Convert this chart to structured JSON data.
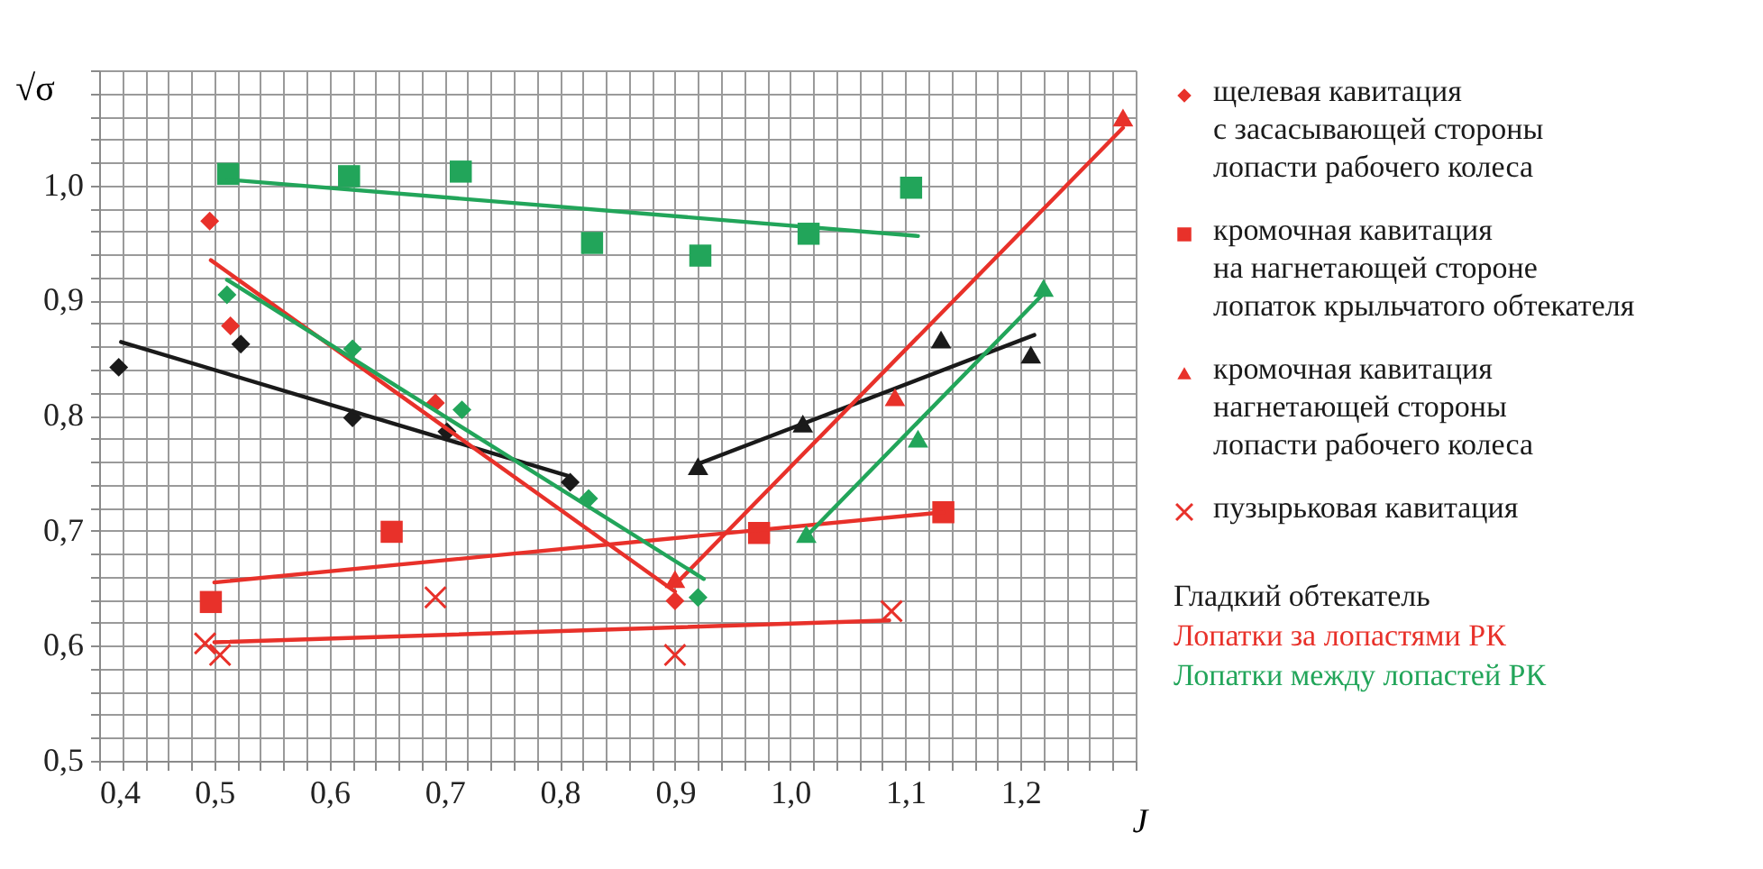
{
  "chart_data": {
    "type": "scatter",
    "xlabel": "J",
    "ylabel": "√σ",
    "xlim": [
      0.4,
      1.3
    ],
    "ylim": [
      0.5,
      1.1
    ],
    "xticks": [
      {
        "value": 0.4,
        "label": "0,4"
      },
      {
        "value": 0.42,
        "label": null
      },
      {
        "value": 0.44,
        "label": null
      },
      {
        "value": 0.46,
        "label": null
      },
      {
        "value": 0.48,
        "label": null
      },
      {
        "value": 0.5,
        "label": "0,5"
      },
      {
        "value": 0.52,
        "label": null
      },
      {
        "value": 0.54,
        "label": null
      },
      {
        "value": 0.56,
        "label": null
      },
      {
        "value": 0.58,
        "label": null
      },
      {
        "value": 0.6,
        "label": "0,6"
      },
      {
        "value": 0.62,
        "label": null
      },
      {
        "value": 0.64,
        "label": null
      },
      {
        "value": 0.66,
        "label": null
      },
      {
        "value": 0.68,
        "label": null
      },
      {
        "value": 0.7,
        "label": "0,7"
      },
      {
        "value": 0.72,
        "label": null
      },
      {
        "value": 0.74,
        "label": null
      },
      {
        "value": 0.76,
        "label": null
      },
      {
        "value": 0.78,
        "label": null
      },
      {
        "value": 0.8,
        "label": "0,8"
      },
      {
        "value": 0.82,
        "label": null
      },
      {
        "value": 0.84,
        "label": null
      },
      {
        "value": 0.86,
        "label": null
      },
      {
        "value": 0.88,
        "label": null
      },
      {
        "value": 0.9,
        "label": "0,9"
      },
      {
        "value": 0.92,
        "label": null
      },
      {
        "value": 0.94,
        "label": null
      },
      {
        "value": 0.96,
        "label": null
      },
      {
        "value": 0.98,
        "label": null
      },
      {
        "value": 1.0,
        "label": "1,0"
      },
      {
        "value": 1.02,
        "label": null
      },
      {
        "value": 1.04,
        "label": null
      },
      {
        "value": 1.06,
        "label": null
      },
      {
        "value": 1.08,
        "label": null
      },
      {
        "value": 1.1,
        "label": "1,1"
      },
      {
        "value": 1.12,
        "label": null
      },
      {
        "value": 1.14,
        "label": null
      },
      {
        "value": 1.16,
        "label": null
      },
      {
        "value": 1.18,
        "label": null
      },
      {
        "value": 1.2,
        "label": "1,2"
      },
      {
        "value": 1.22,
        "label": null
      },
      {
        "value": 1.24,
        "label": null
      },
      {
        "value": 1.26,
        "label": null
      },
      {
        "value": 1.28,
        "label": null
      },
      {
        "value": 1.3,
        "label": null
      }
    ],
    "yticks": [
      {
        "value": 0.5,
        "label": "0,5"
      },
      {
        "value": 0.52,
        "label": null
      },
      {
        "value": 0.54,
        "label": null
      },
      {
        "value": 0.56,
        "label": null
      },
      {
        "value": 0.58,
        "label": null
      },
      {
        "value": 0.6,
        "label": "0,6"
      },
      {
        "value": 0.62,
        "label": null
      },
      {
        "value": 0.64,
        "label": null
      },
      {
        "value": 0.66,
        "label": null
      },
      {
        "value": 0.68,
        "label": null
      },
      {
        "value": 0.7,
        "label": "0,7"
      },
      {
        "value": 0.72,
        "label": null
      },
      {
        "value": 0.74,
        "label": null
      },
      {
        "value": 0.76,
        "label": null
      },
      {
        "value": 0.78,
        "label": null
      },
      {
        "value": 0.8,
        "label": "0,8"
      },
      {
        "value": 0.82,
        "label": null
      },
      {
        "value": 0.84,
        "label": null
      },
      {
        "value": 0.86,
        "label": null
      },
      {
        "value": 0.88,
        "label": null
      },
      {
        "value": 0.9,
        "label": "0,9"
      },
      {
        "value": 0.92,
        "label": null
      },
      {
        "value": 0.94,
        "label": null
      },
      {
        "value": 0.96,
        "label": null
      },
      {
        "value": 0.98,
        "label": null
      },
      {
        "value": 1.0,
        "label": "1,0"
      },
      {
        "value": 1.02,
        "label": null
      },
      {
        "value": 1.04,
        "label": null
      },
      {
        "value": 1.06,
        "label": null
      },
      {
        "value": 1.08,
        "label": null
      },
      {
        "value": 1.1,
        "label": null
      }
    ],
    "grid": true,
    "legend": "right",
    "line_style": "solid",
    "annotations": [
      "Гладкий обтекатель",
      "Лопатки за лопастями РК",
      "Лопатки между лопастей РК"
    ],
    "series": [
      {
        "color": "#1a1a1a",
        "marker": "diamond",
        "x": [
          0.417,
          0.523,
          0.62,
          0.702,
          0.809
        ],
        "values": [
          0.842,
          0.862,
          0.798,
          0.786,
          0.742
        ]
      },
      {
        "type": "line",
        "color": "#1a1a1a",
        "x": [
          0.419,
          0.809
        ],
        "values": [
          0.864,
          0.747
        ]
      },
      {
        "color": "#1a1a1a",
        "marker": "triangle",
        "x": [
          0.92,
          1.011,
          1.131,
          1.209
        ],
        "values": [
          0.756,
          0.793,
          0.866,
          0.853
        ]
      },
      {
        "type": "line",
        "color": "#1a1a1a",
        "x": [
          0.92,
          1.212
        ],
        "values": [
          0.758,
          0.87
        ]
      },
      {
        "name": "щелевая кавитация\nс засасывающей стороны\nлопасти рабочего колеса",
        "color": "#e8312a",
        "marker": "diamond",
        "x": [
          0.496,
          0.514,
          0.692,
          0.9
        ],
        "values": [
          0.969,
          0.878,
          0.811,
          0.639
        ]
      },
      {
        "type": "line",
        "color": "#e8312a",
        "x": [
          0.497,
          0.9
        ],
        "values": [
          0.935,
          0.647
        ]
      },
      {
        "name": "кромочная кавитация\nна нагнетающей стороне\nлопаток крыльчатого обтекателя",
        "color": "#e8312a",
        "marker": "square",
        "x": [
          0.497,
          0.654,
          0.973,
          1.133
        ],
        "values": [
          0.638,
          0.699,
          0.698,
          0.716
        ]
      },
      {
        "type": "line",
        "color": "#e8312a",
        "x": [
          0.5,
          1.133
        ],
        "values": [
          0.655,
          0.716
        ]
      },
      {
        "name": "кромочная кавитация\nнагнетающей стороны\nлопасти рабочего колеса",
        "color": "#e8312a",
        "marker": "triangle",
        "x": [
          0.9,
          1.091,
          1.289
        ],
        "values": [
          0.658,
          0.816,
          1.059
        ]
      },
      {
        "type": "line",
        "color": "#e8312a",
        "x": [
          0.9,
          1.289
        ],
        "values": [
          0.653,
          1.05
        ]
      },
      {
        "name": "пузырьковая кавитация",
        "color": "#e8312a",
        "marker": "cross",
        "x": [
          0.492,
          0.505,
          0.692,
          0.9,
          1.088
        ],
        "values": [
          0.602,
          0.592,
          0.642,
          0.592,
          0.63
        ]
      },
      {
        "type": "line",
        "color": "#e8312a",
        "x": [
          0.5,
          1.086
        ],
        "values": [
          0.603,
          0.622
        ]
      },
      {
        "color": "#22a55a",
        "marker": "diamond",
        "x": [
          0.511,
          0.62,
          0.715,
          0.825,
          0.92
        ],
        "values": [
          0.905,
          0.858,
          0.805,
          0.728,
          0.642
        ]
      },
      {
        "type": "line",
        "color": "#22a55a",
        "x": [
          0.511,
          0.925
        ],
        "values": [
          0.918,
          0.658
        ]
      },
      {
        "color": "#22a55a",
        "marker": "square",
        "x": [
          0.512,
          0.617,
          0.714,
          0.828,
          0.922,
          1.016,
          1.105
        ],
        "values": [
          1.01,
          1.008,
          1.012,
          0.95,
          0.939,
          0.958,
          0.998
        ]
      },
      {
        "type": "line",
        "color": "#22a55a",
        "x": [
          0.512,
          1.111
        ],
        "values": [
          1.005,
          0.956
        ]
      },
      {
        "color": "#22a55a",
        "marker": "triangle",
        "x": [
          1.014,
          1.111,
          1.22
        ],
        "values": [
          0.697,
          0.78,
          0.911
        ]
      },
      {
        "type": "line",
        "color": "#22a55a",
        "x": [
          1.014,
          1.22
        ],
        "values": [
          0.695,
          0.906
        ]
      }
    ]
  }
}
